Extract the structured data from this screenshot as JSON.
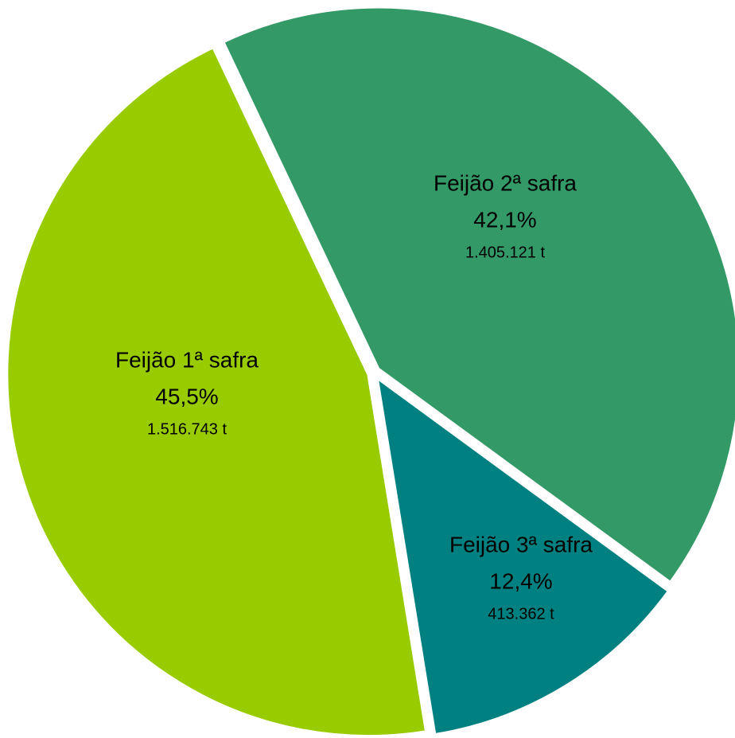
{
  "chart_data": {
    "type": "pie",
    "categories": [
      "Feijão 1ª safra",
      "Feijão 2ª safra",
      "Feijão 3ª safra"
    ],
    "values": [
      45.5,
      42.1,
      12.4
    ],
    "value_labels": [
      "45,5%",
      "42,1%",
      "12,4%"
    ],
    "amounts": [
      1516743,
      1405121,
      413362
    ],
    "amount_labels": [
      "1.516.743 t",
      "1.405.121 t",
      "413.362 t"
    ],
    "colors": [
      "#99cc00",
      "#339966",
      "#008080"
    ]
  }
}
